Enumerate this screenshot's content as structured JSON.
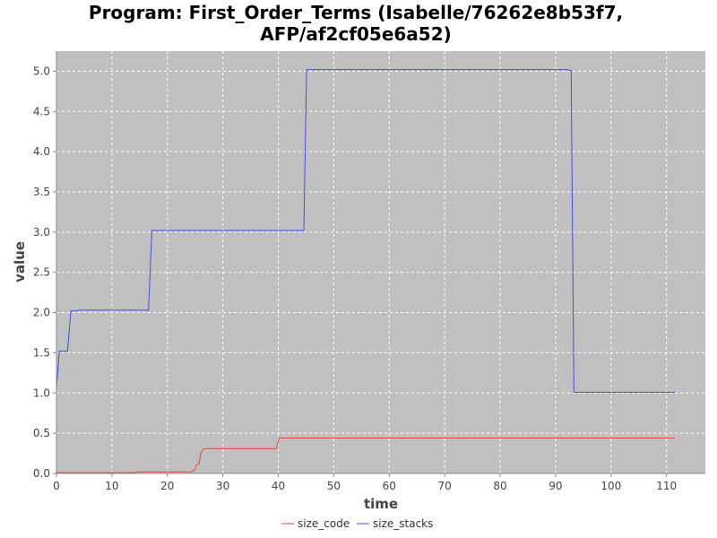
{
  "chart_data": {
    "type": "line",
    "title_line1": "Program: First_Order_Terms (Isabelle/76262e8b53f7,",
    "title_line2": "AFP/af2cf05e6a52)",
    "xlabel": "time",
    "ylabel": "value",
    "xlim": [
      0,
      117
    ],
    "ylim": [
      0,
      5.25
    ],
    "xticks": [
      0,
      10,
      20,
      30,
      40,
      50,
      60,
      70,
      80,
      90,
      100,
      110
    ],
    "yticks": [
      0.0,
      0.5,
      1.0,
      1.5,
      2.0,
      2.5,
      3.0,
      3.5,
      4.0,
      4.5,
      5.0
    ],
    "grid": true,
    "legend_position": "bottom-center",
    "plot_background": "#c0c0c0",
    "series": [
      {
        "name": "size_code",
        "color": "#e8443a",
        "points": [
          [
            0,
            0.01
          ],
          [
            14,
            0.01
          ],
          [
            14.5,
            0.02
          ],
          [
            24.3,
            0.02
          ],
          [
            25,
            0.05
          ],
          [
            25.3,
            0.11
          ],
          [
            25.7,
            0.12
          ],
          [
            26,
            0.25
          ],
          [
            26.5,
            0.3
          ],
          [
            27,
            0.31
          ],
          [
            39.6,
            0.31
          ],
          [
            40.2,
            0.44
          ],
          [
            111.5,
            0.44
          ]
        ]
      },
      {
        "name": "size_stacks",
        "color": "#4a4ae8",
        "points": [
          [
            0,
            1.05
          ],
          [
            0.5,
            1.52
          ],
          [
            2,
            1.52
          ],
          [
            2.6,
            2.02
          ],
          [
            3.5,
            2.02
          ],
          [
            4,
            2.03
          ],
          [
            16.6,
            2.03
          ],
          [
            17.2,
            3.02
          ],
          [
            44.6,
            3.02
          ],
          [
            45.1,
            5.02
          ],
          [
            92.2,
            5.02
          ],
          [
            92.4,
            5.01
          ],
          [
            92.8,
            5.01
          ],
          [
            93.3,
            1.01
          ],
          [
            111.5,
            1.01
          ]
        ]
      }
    ]
  }
}
